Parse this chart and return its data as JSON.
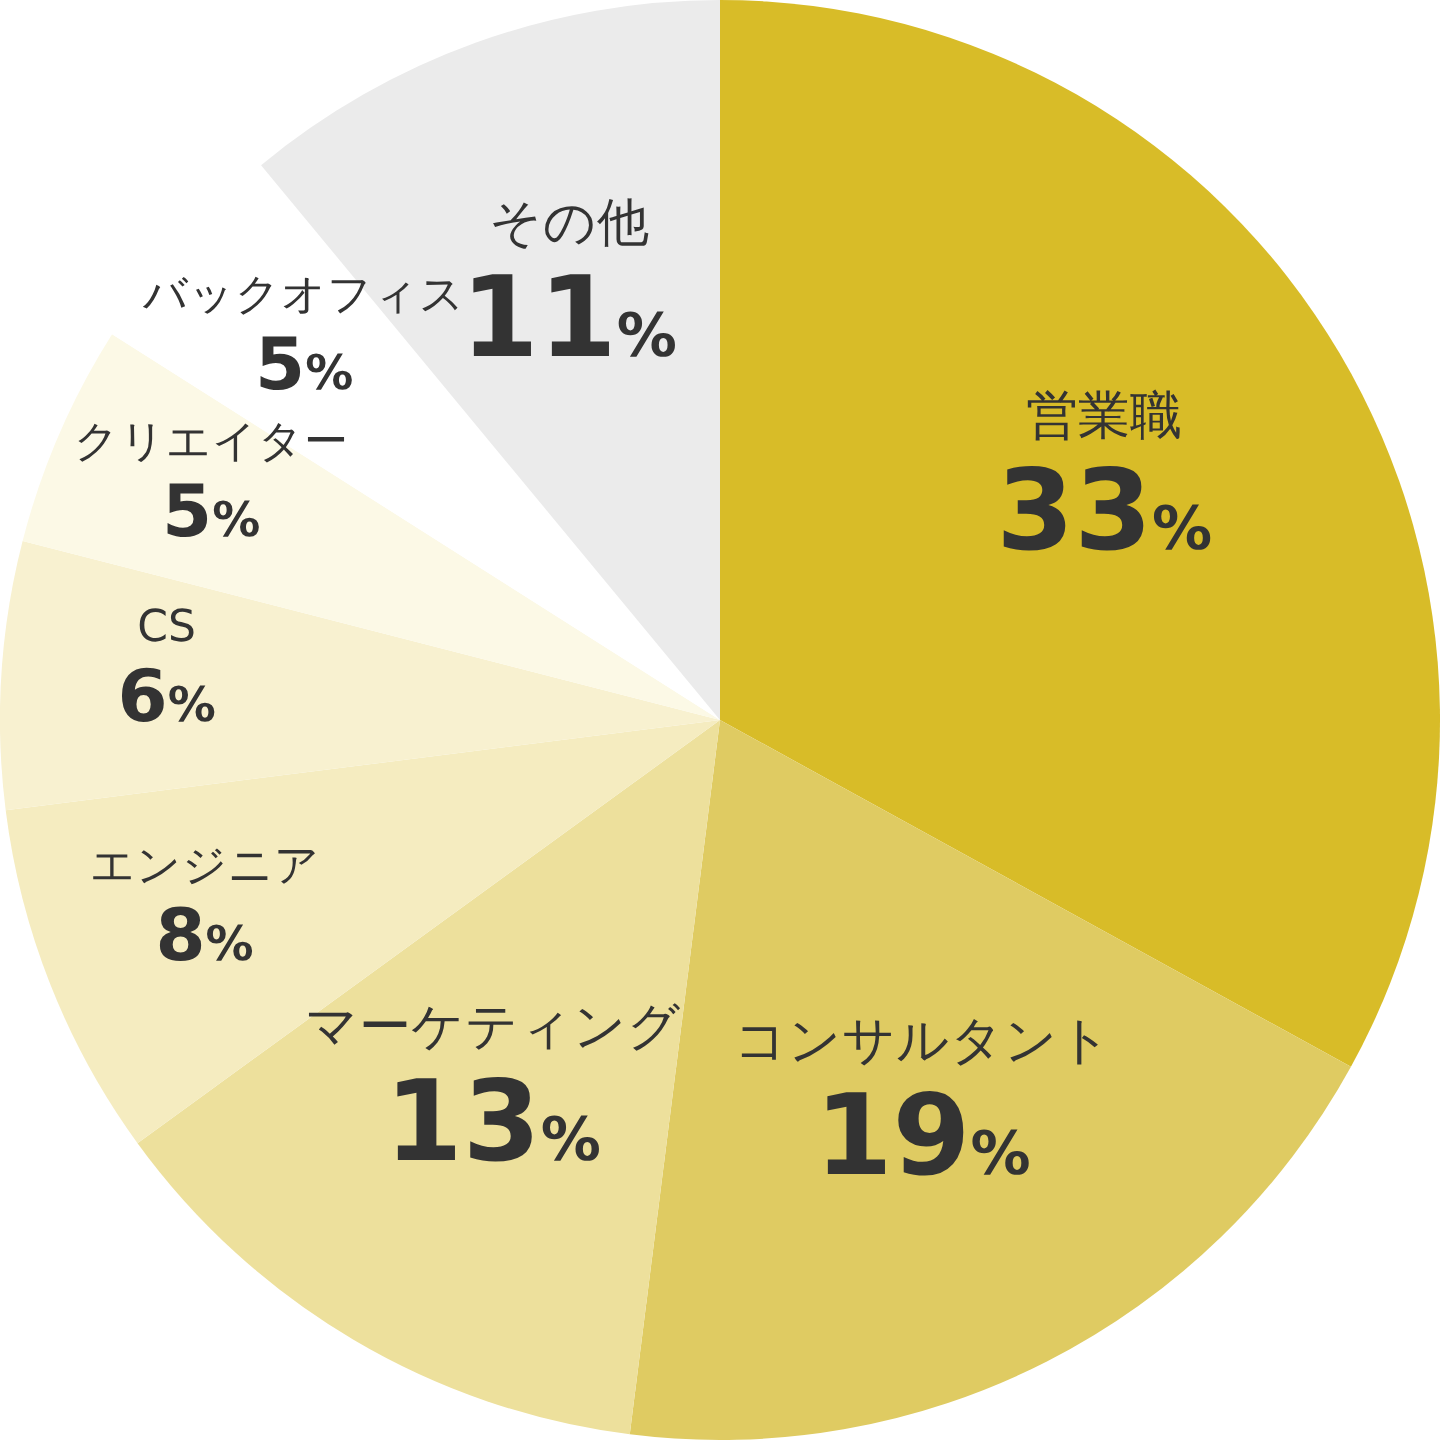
{
  "chart_data": {
    "type": "pie",
    "categories": [
      "営業職",
      "コンサルタント",
      "マーケティング",
      "エンジニア",
      "CS",
      "クリエイター",
      "バックオフィス",
      "その他"
    ],
    "values": [
      33,
      19,
      13,
      8,
      6,
      5,
      5,
      11
    ],
    "colors": [
      "#d8bc28",
      "#dfcb62",
      "#ede09c",
      "#f5ecc0",
      "#f8f1d0",
      "#fcf9e6",
      "#ffffff",
      "#ebebeb"
    ],
    "value_labels": [
      "33%",
      "19%",
      "13%",
      "8%",
      "6%",
      "5%",
      "5%",
      "11%"
    ]
  }
}
